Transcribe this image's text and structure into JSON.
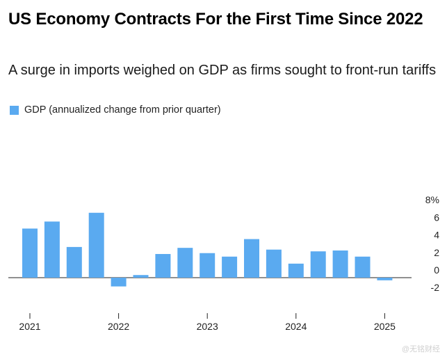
{
  "chart_data": {
    "type": "bar",
    "title": "US Economy Contracts For the First Time Since 2022",
    "subtitle": "A surge in imports weighed on GDP as firms sought to front-run tariffs",
    "series": [
      {
        "name": "GDP (annualized change from prior quarter)",
        "color": "#5aaaf0",
        "values": [
          5.6,
          6.4,
          3.5,
          7.4,
          -1.0,
          0.3,
          2.7,
          3.4,
          2.8,
          2.4,
          4.4,
          3.2,
          1.6,
          3.0,
          3.1,
          2.4,
          -0.3
        ]
      }
    ],
    "categories": [
      "2021 Q1",
      "2021 Q2",
      "2021 Q3",
      "2021 Q4",
      "2022 Q1",
      "2022 Q2",
      "2022 Q3",
      "2022 Q4",
      "2023 Q1",
      "2023 Q2",
      "2023 Q3",
      "2023 Q4",
      "2024 Q1",
      "2024 Q2",
      "2024 Q3",
      "2024 Q4",
      "2025 Q1"
    ],
    "x_tick_labels": [
      "2021",
      "2022",
      "2023",
      "2024",
      "2025"
    ],
    "x_tick_start_index": [
      0,
      4,
      8,
      12,
      16
    ],
    "y_ticks": [
      "8%",
      "6",
      "4",
      "2",
      "0",
      "-2"
    ],
    "y_tick_values": [
      8,
      6,
      4,
      2,
      0,
      -2
    ],
    "ylim": [
      -2,
      8
    ],
    "xlabel": "",
    "ylabel": ""
  },
  "watermark": "@无铭财经"
}
